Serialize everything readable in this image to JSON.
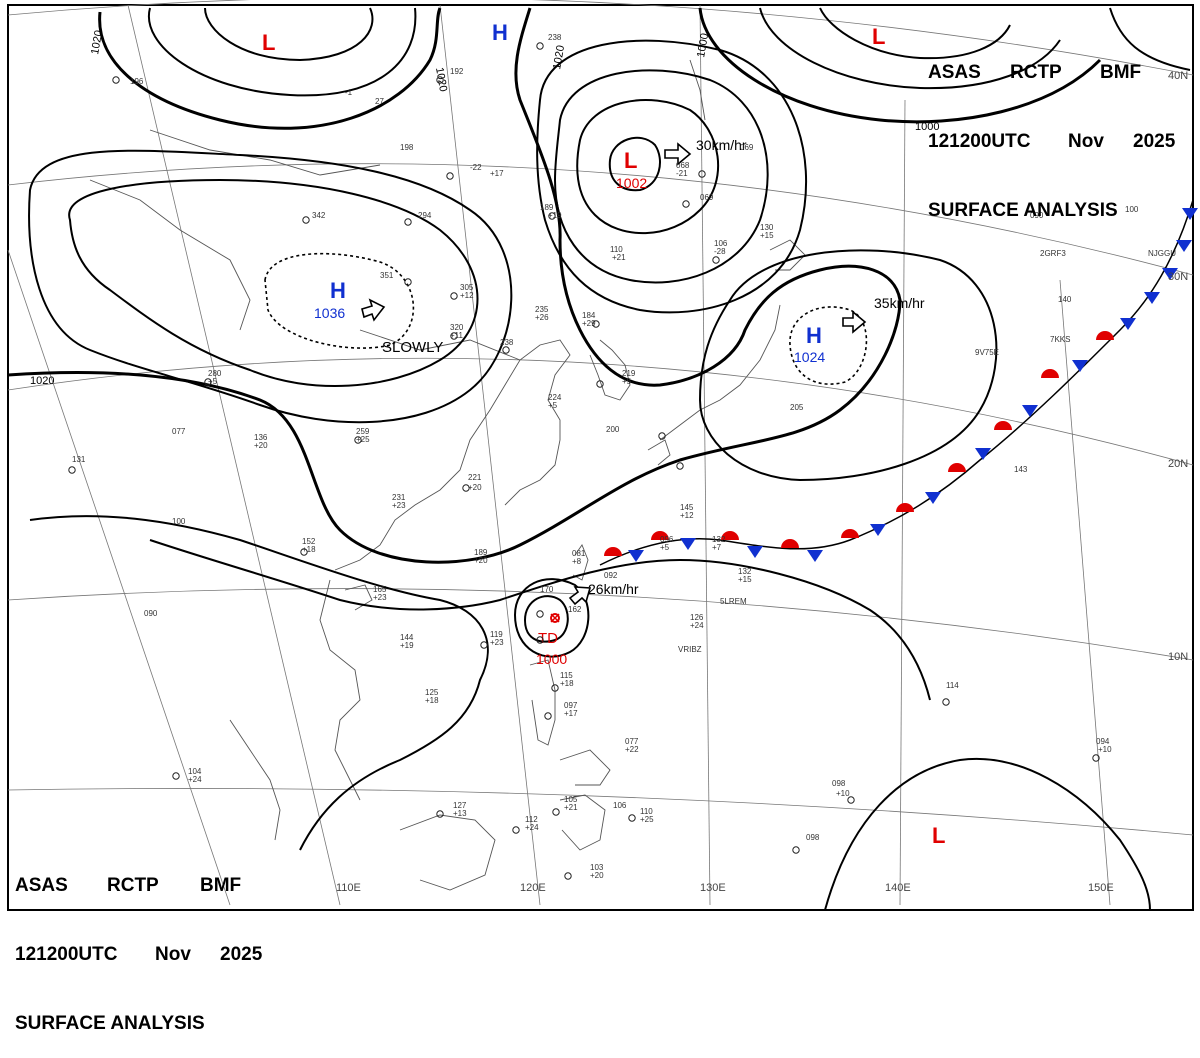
{
  "header_top": {
    "org": "ASAS",
    "station": "RCTP",
    "agency": "BMF",
    "time": "121200UTC",
    "month": "Nov",
    "year": "2025",
    "title": "SURFACE ANALYSIS"
  },
  "header_bottom": {
    "org": "ASAS",
    "station": "RCTP",
    "agency": "BMF",
    "time": "121200UTC",
    "month": "Nov",
    "year": "2025",
    "title": "SURFACE ANALYSIS"
  },
  "pressure_centers": [
    {
      "type": "L",
      "color": "#e00000"
    },
    {
      "type": "H",
      "color": "#1030d0"
    },
    {
      "type": "L",
      "color": "#e00000"
    },
    {
      "type": "L",
      "color": "#e00000",
      "value": "1002"
    },
    {
      "type": "H",
      "color": "#1030d0",
      "value": "1036"
    },
    {
      "type": "H",
      "color": "#1030d0",
      "value": "1024"
    },
    {
      "type": "L",
      "color": "#e00000"
    }
  ],
  "tropical_depression": {
    "label": "TD",
    "value": "1000",
    "color": "#e00000"
  },
  "motions": [
    {
      "text": "30km/hr"
    },
    {
      "text": "SLOWLY"
    },
    {
      "text": "35km/hr"
    },
    {
      "text": "26km/hr"
    }
  ],
  "isobar_labels": [
    "1020",
    "1020",
    "1020",
    "1000",
    "1000",
    "1020"
  ],
  "lat_labels": [
    "40N",
    "30N",
    "20N",
    "10N"
  ],
  "lon_labels": [
    "110E",
    "120E",
    "130E",
    "140E",
    "150E"
  ],
  "station_obs": [
    "196",
    "-1",
    "27",
    "198",
    "192",
    "238",
    "-22",
    "+17",
    "189",
    "+19",
    "342",
    "294",
    "351",
    "305",
    "+12",
    "320",
    "+11",
    "238",
    "235",
    "+26",
    "184",
    "+29",
    "110",
    "+21",
    "106",
    "-28",
    "068",
    "-21",
    "069",
    "069",
    "130",
    "+15",
    "090",
    "100",
    "140",
    "280",
    "+5",
    "077",
    "136",
    "+20",
    "131",
    "259",
    "+25",
    "221",
    "+20",
    "231",
    "+23",
    "219",
    "+5",
    "224",
    "+5",
    "200",
    "205",
    "145",
    "+12",
    "189",
    "+20",
    "152",
    "+18",
    "100",
    "143",
    "081",
    "+8",
    "092",
    "096",
    "+5",
    "132",
    "+7",
    "132",
    "+15",
    "126",
    "+24",
    "119",
    "+23",
    "170",
    "162",
    "165",
    "+23",
    "090",
    "144",
    "+19",
    "125",
    "+18",
    "115",
    "+18",
    "097",
    "+17",
    "114",
    "094",
    "+10",
    "077",
    "+22",
    "104",
    "+24",
    "127",
    "+13",
    "112",
    "+24",
    "105",
    "+21",
    "106",
    "110",
    "+25",
    "098",
    "+10",
    "098",
    "103",
    "+20",
    "2GRF3",
    "NJGGU",
    "9V75E",
    "7KKS",
    "5LREM",
    "VRIBZ"
  ],
  "colors": {
    "warm_front": "#e00000",
    "cold_front": "#1030d0",
    "isobar": "#000000",
    "grid": "#777777",
    "coast": "#555555"
  }
}
